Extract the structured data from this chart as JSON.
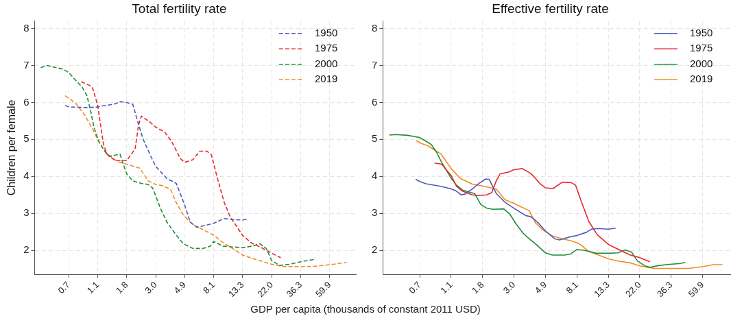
{
  "chart_data": [
    {
      "type": "line",
      "title": "Total fertility rate",
      "xlabel": "GDP per capita (thousands of constant 2011 USD)",
      "ylabel": "Children per female",
      "log": "x",
      "grid": true,
      "legend": "top right",
      "line_style": "dashed",
      "marker": "none",
      "xlim": [
        0.37,
        94
      ],
      "xticks": [
        {
          "value": 0.665,
          "label": "0.7"
        },
        {
          "value": 1.097,
          "label": "1.1"
        },
        {
          "value": 1.808,
          "label": "1.8"
        },
        {
          "value": 2.981,
          "label": "3.0"
        },
        {
          "value": 4.915,
          "label": "4.9"
        },
        {
          "value": 8.103,
          "label": "8.1"
        },
        {
          "value": 13.34,
          "label": "13.3"
        },
        {
          "value": 22.03,
          "label": "22.0"
        },
        {
          "value": 36.32,
          "label": "36.3"
        },
        {
          "value": 59.88,
          "label": "59.9"
        }
      ],
      "ylim": [
        1.35,
        8.2
      ],
      "yticks": [
        2,
        3,
        4,
        5,
        6,
        7,
        8
      ],
      "series": [
        {
          "name": "1950",
          "color": "#4a5bb5",
          "x": [
            0.626,
            0.665,
            0.776,
            0.948,
            1.097,
            1.262,
            1.451,
            1.613,
            1.808,
            2.007,
            2.22,
            2.405,
            2.775,
            2.981,
            3.62,
            4.25,
            4.915,
            5.41,
            6.07,
            8.103,
            9.72,
            11.21,
            13.36,
            14.62
          ],
          "values": [
            5.92,
            5.88,
            5.87,
            5.86,
            5.88,
            5.92,
            5.95,
            6.02,
            6.0,
            5.95,
            5.4,
            5.0,
            4.5,
            4.27,
            3.94,
            3.81,
            3.22,
            2.76,
            2.62,
            2.73,
            2.86,
            2.83,
            2.82,
            2.84
          ]
        },
        {
          "name": "1975",
          "color": "#e8262b",
          "x": [
            0.825,
            0.968,
            1.007,
            1.097,
            1.165,
            1.212,
            1.288,
            1.481,
            1.808,
            2.09,
            2.22,
            2.332,
            2.72,
            2.981,
            3.48,
            3.926,
            4.56,
            4.915,
            5.65,
            6.37,
            7.22,
            7.79,
            8.65,
            9.72,
            10.78,
            13.36,
            15.52,
            18.96,
            22.03,
            25.73
          ],
          "values": [
            6.56,
            6.45,
            6.38,
            5.92,
            5.27,
            4.87,
            4.6,
            4.43,
            4.43,
            4.74,
            5.4,
            5.63,
            5.46,
            5.33,
            5.2,
            4.94,
            4.48,
            4.38,
            4.45,
            4.68,
            4.68,
            4.58,
            3.94,
            3.29,
            2.9,
            2.4,
            2.2,
            2.05,
            1.92,
            1.8
          ]
        },
        {
          "name": "2000",
          "color": "#1e8c3a",
          "x": [
            0.411,
            0.459,
            0.539,
            0.607,
            0.665,
            0.746,
            0.841,
            0.911,
            0.968,
            1.027,
            1.119,
            1.236,
            1.339,
            1.613,
            1.678,
            1.808,
            2.007,
            2.32,
            2.618,
            2.835,
            3.213,
            3.62,
            4.25,
            4.79,
            5.65,
            6.77,
            7.62,
            8.103,
            9.55,
            13.36,
            16.17,
            17.86,
            20.04,
            22.03,
            25.22,
            29.74,
            36.32,
            45.47
          ],
          "values": [
            6.94,
            7.0,
            6.94,
            6.9,
            6.81,
            6.61,
            6.41,
            6.18,
            5.79,
            5.33,
            4.94,
            4.68,
            4.54,
            4.6,
            4.4,
            4.07,
            3.88,
            3.81,
            3.78,
            3.68,
            3.16,
            2.76,
            2.41,
            2.18,
            2.05,
            2.05,
            2.11,
            2.24,
            2.11,
            2.07,
            2.12,
            2.18,
            2.05,
            1.72,
            1.59,
            1.62,
            1.69,
            1.75
          ]
        },
        {
          "name": "2019",
          "color": "#f58a1f",
          "x": [
            0.626,
            0.746,
            0.876,
            0.987,
            1.097,
            1.212,
            1.313,
            1.541,
            1.808,
            2.264,
            2.618,
            2.981,
            3.345,
            3.845,
            4.25,
            4.79,
            5.65,
            6.635,
            8.103,
            9.72,
            11.21,
            13.36,
            16.17,
            22.03,
            27.32,
            36.32,
            44.35,
            59.88,
            80.06
          ],
          "values": [
            6.18,
            5.99,
            5.66,
            5.33,
            5.0,
            4.74,
            4.59,
            4.4,
            4.33,
            4.22,
            3.88,
            3.78,
            3.75,
            3.65,
            3.29,
            2.96,
            2.7,
            2.57,
            2.41,
            2.18,
            2.05,
            1.87,
            1.77,
            1.62,
            1.56,
            1.56,
            1.56,
            1.61,
            1.67
          ]
        }
      ]
    },
    {
      "type": "line",
      "title": "Effective fertility rate",
      "log": "x",
      "grid": true,
      "legend": "top right",
      "line_style": "solid",
      "marker": "none",
      "xlim": [
        0.37,
        94
      ],
      "xticks": [
        {
          "value": 0.665,
          "label": "0.7"
        },
        {
          "value": 1.097,
          "label": "1.1"
        },
        {
          "value": 1.808,
          "label": "1.8"
        },
        {
          "value": 2.981,
          "label": "3.0"
        },
        {
          "value": 4.915,
          "label": "4.9"
        },
        {
          "value": 8.103,
          "label": "8.1"
        },
        {
          "value": 13.34,
          "label": "13.3"
        },
        {
          "value": 22.03,
          "label": "22.0"
        },
        {
          "value": 36.32,
          "label": "36.3"
        },
        {
          "value": 59.88,
          "label": "59.9"
        }
      ],
      "ylim": [
        1.35,
        8.2
      ],
      "yticks": [
        2,
        3,
        4,
        5,
        6,
        7,
        8
      ],
      "series": [
        {
          "name": "1950",
          "color": "#4a5bb5",
          "x": [
            0.623,
            0.665,
            0.735,
            0.93,
            1.097,
            1.195,
            1.281,
            1.366,
            1.534,
            1.72,
            1.9,
            2.007,
            2.253,
            2.58,
            2.97,
            3.586,
            3.884,
            4.36,
            4.915,
            5.71,
            6.14,
            7.19,
            8.103,
            9.46,
            10.19,
            11.43,
            13.36,
            14.99
          ],
          "values": [
            3.92,
            3.86,
            3.8,
            3.73,
            3.66,
            3.6,
            3.5,
            3.52,
            3.66,
            3.82,
            3.93,
            3.92,
            3.53,
            3.3,
            3.14,
            2.94,
            2.91,
            2.75,
            2.52,
            2.31,
            2.28,
            2.36,
            2.4,
            2.49,
            2.57,
            2.59,
            2.57,
            2.6
          ]
        },
        {
          "name": "1975",
          "color": "#e8262b",
          "x": [
            0.841,
            0.944,
            1.043,
            1.097,
            1.195,
            1.313,
            1.534,
            1.686,
            1.929,
            2.09,
            2.253,
            2.392,
            2.761,
            2.97,
            3.395,
            3.884,
            4.18,
            4.537,
            4.915,
            5.54,
            6.4,
            7.33,
            7.94,
            8.73,
            9.8,
            11.21,
            13.36,
            15.6,
            18.96,
            22.03,
            25.86
          ],
          "values": [
            4.36,
            4.33,
            4.12,
            4.02,
            3.73,
            3.6,
            3.5,
            3.48,
            3.5,
            3.56,
            3.89,
            4.07,
            4.12,
            4.18,
            4.21,
            4.08,
            3.95,
            3.79,
            3.69,
            3.67,
            3.84,
            3.84,
            3.76,
            3.3,
            2.78,
            2.42,
            2.16,
            2.03,
            1.87,
            1.8,
            1.69
          ]
        },
        {
          "name": "2000",
          "color": "#1e8c3a",
          "x": [
            0.411,
            0.452,
            0.55,
            0.605,
            0.665,
            0.735,
            0.8,
            0.876,
            0.944,
            1.097,
            1.195,
            1.313,
            1.596,
            1.755,
            1.929,
            2.133,
            2.531,
            2.785,
            3.071,
            3.446,
            3.8,
            4.18,
            4.915,
            5.485,
            6.67,
            7.33,
            8.103,
            9.09,
            11.0,
            13.36,
            15.6,
            17.5,
            19.34,
            21.24,
            23.86,
            25.97,
            30.18,
            35.47,
            41.15,
            45.47
          ],
          "values": [
            5.12,
            5.13,
            5.11,
            5.08,
            5.05,
            4.95,
            4.86,
            4.63,
            4.37,
            3.95,
            3.76,
            3.63,
            3.53,
            3.24,
            3.14,
            3.11,
            3.12,
            2.98,
            2.72,
            2.46,
            2.31,
            2.18,
            1.93,
            1.87,
            1.87,
            1.9,
            2.02,
            2.0,
            1.92,
            1.92,
            1.93,
            2.01,
            1.95,
            1.71,
            1.58,
            1.54,
            1.59,
            1.62,
            1.64,
            1.67
          ]
        },
        {
          "name": "2019",
          "color": "#f58a1f",
          "x": [
            0.626,
            0.682,
            0.765,
            0.858,
            0.93,
            1.097,
            1.262,
            1.534,
            1.862,
            2.253,
            2.58,
            2.97,
            3.8,
            4.18,
            4.71,
            5.485,
            6.4,
            7.49,
            8.39,
            9.8,
            11.43,
            13.36,
            15.6,
            18.96,
            21.92,
            24.83,
            27.8,
            36.5,
            47.83,
            60.5,
            70.6,
            82.0
          ],
          "values": [
            4.97,
            4.89,
            4.82,
            4.69,
            4.61,
            4.21,
            3.95,
            3.79,
            3.73,
            3.65,
            3.37,
            3.27,
            3.07,
            2.75,
            2.55,
            2.39,
            2.31,
            2.25,
            2.18,
            1.97,
            1.87,
            1.77,
            1.71,
            1.66,
            1.58,
            1.54,
            1.51,
            1.51,
            1.51,
            1.56,
            1.61,
            1.61
          ]
        }
      ]
    }
  ]
}
